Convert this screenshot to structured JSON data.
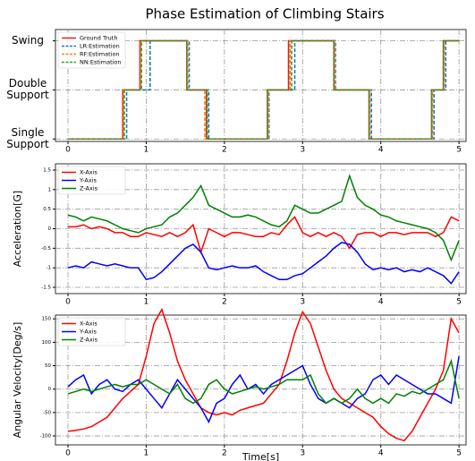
{
  "chart_data": [
    {
      "type": "line",
      "title": "Phase Estimation of Climbing Stairs",
      "xlim": [
        -0.16,
        5.09
      ],
      "xticks": [
        0,
        1,
        2,
        3,
        4,
        5
      ],
      "ylim": [
        -0.05,
        2.23
      ],
      "yticks": [
        {
          "value": 0,
          "label": "Single Support"
        },
        {
          "value": 1,
          "label": "Double Support"
        },
        {
          "value": 2,
          "label": "Swing"
        }
      ],
      "grid": true,
      "legend": "upper left",
      "series": [
        {
          "name": "Ground Truth",
          "color": "#e32020",
          "style": "solid",
          "x": [
            0,
            0.7,
            0.7,
            0.92,
            0.92,
            1.52,
            1.52,
            1.77,
            1.77,
            2.55,
            2.55,
            2.82,
            2.82,
            3.4,
            3.4,
            3.85,
            3.85,
            4.65,
            4.65,
            4.8,
            4.8,
            5.0
          ],
          "values": [
            0,
            0,
            1,
            1,
            2,
            2,
            1,
            1,
            0,
            0,
            1,
            1,
            2,
            2,
            1,
            1,
            0,
            0,
            1,
            1,
            2,
            2
          ]
        },
        {
          "name": "LR:Estimation",
          "color": "#1f77b4",
          "style": "dashed",
          "x": [
            0,
            0.75,
            0.75,
            1.05,
            1.05,
            1.55,
            1.55,
            1.8,
            1.8,
            2.57,
            2.57,
            2.9,
            2.9,
            3.42,
            3.42,
            3.88,
            3.88,
            4.68,
            4.68,
            4.83,
            4.83,
            5.0
          ],
          "values": [
            0,
            0,
            1,
            1,
            2,
            2,
            1,
            1,
            0,
            0,
            1,
            1,
            2,
            2,
            1,
            1,
            0,
            0,
            1,
            1,
            2,
            2
          ]
        },
        {
          "name": "RF:Estimation",
          "color": "#ff7f0e",
          "style": "dashed",
          "x": [
            0,
            0.71,
            0.71,
            0.93,
            0.93,
            1.53,
            1.53,
            1.75,
            1.75,
            2.56,
            2.56,
            2.84,
            2.84,
            3.41,
            3.41,
            3.86,
            3.86,
            4.66,
            4.66,
            4.81,
            4.81,
            5.0
          ],
          "values": [
            0,
            0,
            1,
            1,
            2,
            2,
            1,
            1,
            0,
            0,
            1,
            1,
            2,
            2,
            1,
            1,
            0,
            0,
            1,
            1,
            2,
            2
          ]
        },
        {
          "name": "NN:Estimation",
          "color": "#2ca02c",
          "style": "dashed",
          "x": [
            0,
            0.72,
            0.72,
            0.94,
            0.94,
            1.52,
            1.52,
            1.78,
            1.78,
            2.55,
            2.55,
            2.86,
            2.86,
            3.4,
            3.4,
            3.85,
            3.85,
            4.65,
            4.65,
            4.8,
            4.8,
            5.0
          ],
          "values": [
            0,
            0,
            1,
            1,
            2,
            2,
            1,
            1,
            0,
            0,
            1,
            1,
            2,
            2,
            1,
            1,
            0,
            0,
            1,
            1,
            2,
            2
          ]
        }
      ]
    },
    {
      "type": "line",
      "ylabel": "Acceleration[G]",
      "xlim": [
        -0.16,
        5.09
      ],
      "xticks": [
        0,
        1,
        2,
        3,
        4,
        5
      ],
      "ylim": [
        -1.66,
        1.66
      ],
      "yticks": [
        -1.5,
        -1.0,
        -0.5,
        0.0,
        0.5,
        1.0,
        1.5
      ],
      "grid": true,
      "legend": "upper left",
      "x": [
        0,
        0.1,
        0.2,
        0.3,
        0.4,
        0.5,
        0.6,
        0.7,
        0.8,
        0.9,
        1.0,
        1.1,
        1.2,
        1.3,
        1.4,
        1.5,
        1.6,
        1.7,
        1.8,
        1.9,
        2.0,
        2.1,
        2.2,
        2.3,
        2.4,
        2.5,
        2.6,
        2.7,
        2.8,
        2.9,
        3.0,
        3.1,
        3.2,
        3.3,
        3.4,
        3.5,
        3.6,
        3.7,
        3.8,
        3.9,
        4.0,
        4.1,
        4.2,
        4.3,
        4.4,
        4.5,
        4.6,
        4.7,
        4.8,
        4.9,
        5.0
      ],
      "series": [
        {
          "name": "X-Axis",
          "color": "#ff0000",
          "style": "solid",
          "values": [
            0.05,
            0.05,
            0.1,
            0.0,
            0.05,
            0.0,
            -0.1,
            -0.1,
            -0.2,
            -0.2,
            -0.1,
            -0.15,
            -0.2,
            -0.1,
            -0.2,
            -0.1,
            0.1,
            -0.6,
            0.0,
            -0.1,
            -0.2,
            -0.1,
            -0.1,
            -0.15,
            -0.2,
            -0.2,
            -0.1,
            -0.15,
            0.1,
            0.3,
            -0.1,
            -0.2,
            -0.1,
            -0.2,
            -0.1,
            -0.2,
            -0.5,
            -0.15,
            -0.1,
            -0.1,
            -0.2,
            -0.1,
            -0.1,
            -0.15,
            -0.1,
            -0.1,
            -0.1,
            -0.2,
            -0.1,
            0.3,
            0.2
          ]
        },
        {
          "name": "Y-Axis",
          "color": "#0000ff",
          "style": "solid",
          "values": [
            -1.0,
            -0.95,
            -1.0,
            -0.85,
            -0.9,
            -0.95,
            -0.9,
            -0.95,
            -1.0,
            -1.0,
            -1.3,
            -1.25,
            -1.1,
            -0.9,
            -0.7,
            -0.5,
            -0.4,
            -0.6,
            -1.0,
            -1.05,
            -1.0,
            -0.95,
            -1.0,
            -1.0,
            -0.95,
            -1.1,
            -1.2,
            -1.3,
            -1.3,
            -1.2,
            -1.15,
            -1.0,
            -0.85,
            -0.7,
            -0.5,
            -0.35,
            -0.4,
            -0.6,
            -0.9,
            -1.05,
            -1.0,
            -1.05,
            -1.0,
            -1.1,
            -1.05,
            -1.1,
            -1.0,
            -1.1,
            -1.2,
            -1.4,
            -1.1
          ]
        },
        {
          "name": "Z-Axis",
          "color": "#008000",
          "style": "solid",
          "values": [
            0.35,
            0.3,
            0.2,
            0.3,
            0.25,
            0.2,
            0.1,
            0.0,
            -0.05,
            -0.1,
            0.0,
            0.05,
            0.1,
            0.3,
            0.4,
            0.6,
            0.8,
            1.1,
            0.6,
            0.5,
            0.4,
            0.3,
            0.3,
            0.35,
            0.3,
            0.2,
            0.1,
            0.05,
            0.2,
            0.6,
            0.5,
            0.4,
            0.4,
            0.5,
            0.6,
            0.7,
            1.35,
            0.8,
            0.6,
            0.5,
            0.35,
            0.3,
            0.2,
            0.15,
            0.1,
            0.05,
            0.0,
            -0.1,
            -0.3,
            -0.8,
            -0.3
          ]
        }
      ]
    },
    {
      "type": "line",
      "ylabel": "Angular Velocity[Deg/s]",
      "xlabel": "Time[s]",
      "xlim": [
        -0.16,
        5.09
      ],
      "xticks": [
        0,
        1,
        2,
        3,
        4,
        5
      ],
      "ylim": [
        -119,
        158
      ],
      "yticks": [
        -100,
        -50,
        0,
        50,
        100,
        150
      ],
      "grid": true,
      "legend": "upper left",
      "x": [
        0,
        0.1,
        0.2,
        0.3,
        0.4,
        0.5,
        0.6,
        0.7,
        0.8,
        0.9,
        1.0,
        1.1,
        1.2,
        1.3,
        1.4,
        1.5,
        1.6,
        1.7,
        1.8,
        1.9,
        2.0,
        2.1,
        2.2,
        2.3,
        2.4,
        2.5,
        2.6,
        2.7,
        2.8,
        2.9,
        3.0,
        3.1,
        3.2,
        3.3,
        3.4,
        3.5,
        3.6,
        3.7,
        3.8,
        3.9,
        4.0,
        4.1,
        4.2,
        4.3,
        4.4,
        4.5,
        4.6,
        4.7,
        4.8,
        4.9,
        5.0
      ],
      "series": [
        {
          "name": "X-Axis",
          "color": "#ff0000",
          "style": "solid",
          "values": [
            -90,
            -88,
            -85,
            -80,
            -70,
            -60,
            -40,
            -20,
            -5,
            10,
            70,
            140,
            170,
            120,
            60,
            20,
            -10,
            -40,
            -50,
            -55,
            -50,
            -55,
            -45,
            -40,
            -35,
            -30,
            -10,
            10,
            60,
            120,
            165,
            140,
            90,
            40,
            0,
            -20,
            -30,
            -40,
            -50,
            -60,
            -80,
            -95,
            -105,
            -110,
            -90,
            -60,
            -30,
            0,
            40,
            150,
            120
          ]
        },
        {
          "name": "Y-Axis",
          "color": "#0000ff",
          "style": "solid",
          "values": [
            5,
            20,
            30,
            -10,
            10,
            20,
            0,
            -5,
            10,
            20,
            0,
            -20,
            -40,
            -10,
            20,
            0,
            -20,
            -40,
            -70,
            -30,
            -20,
            10,
            30,
            0,
            10,
            -10,
            10,
            20,
            30,
            40,
            50,
            10,
            -20,
            -30,
            -20,
            -30,
            -40,
            -20,
            -10,
            20,
            30,
            10,
            30,
            20,
            10,
            0,
            -10,
            -10,
            -20,
            -30,
            70
          ]
        },
        {
          "name": "Z-Axis",
          "color": "#008000",
          "style": "solid",
          "values": [
            -10,
            -5,
            0,
            -5,
            0,
            5,
            10,
            5,
            10,
            10,
            20,
            10,
            0,
            -10,
            10,
            -20,
            -30,
            -20,
            10,
            20,
            0,
            -10,
            -5,
            0,
            5,
            0,
            5,
            10,
            20,
            20,
            20,
            30,
            -10,
            -30,
            -20,
            -30,
            -20,
            0,
            -20,
            -30,
            -20,
            -30,
            -10,
            -15,
            -5,
            -10,
            0,
            10,
            20,
            60,
            -20
          ]
        }
      ]
    }
  ]
}
